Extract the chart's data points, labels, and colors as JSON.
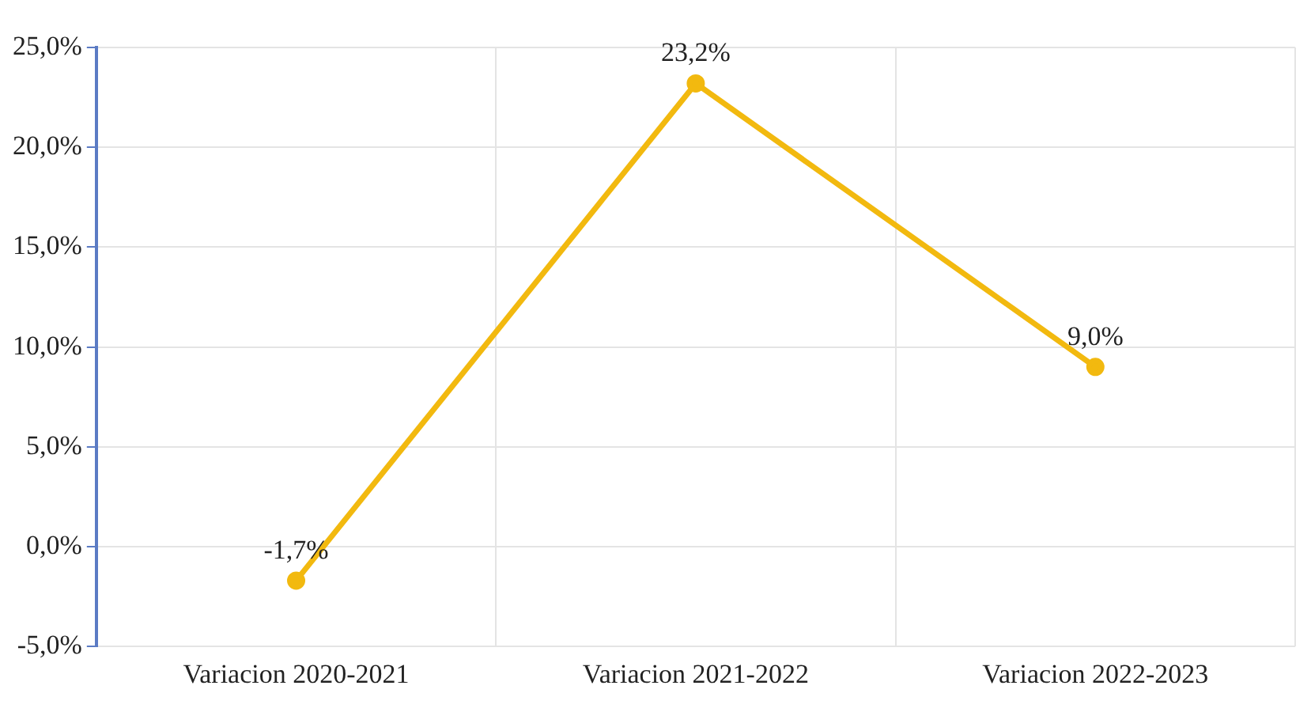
{
  "chart_data": {
    "type": "line",
    "categories": [
      "Variacion 2020-2021",
      "Variacion 2021-2022",
      "Variacion 2022-2023"
    ],
    "series": [
      {
        "color": "#f2b90f",
        "values": [
          -1.7,
          23.2,
          9.0
        ],
        "value_labels": [
          "-1,7%",
          "23,2%",
          "9,0%"
        ]
      }
    ],
    "ylim": [
      -5,
      25
    ],
    "yticks": [
      {
        "value": -5,
        "label": "-5,0%"
      },
      {
        "value": 0,
        "label": "0,0%"
      },
      {
        "value": 5,
        "label": "5,0%"
      },
      {
        "value": 10,
        "label": "10,0%"
      },
      {
        "value": 15,
        "label": "15,0%"
      },
      {
        "value": 20,
        "label": "20,0%"
      },
      {
        "value": 25,
        "label": "25,0%"
      }
    ],
    "grid": true,
    "marker": "circle",
    "line_style": "solid",
    "legend": false
  }
}
